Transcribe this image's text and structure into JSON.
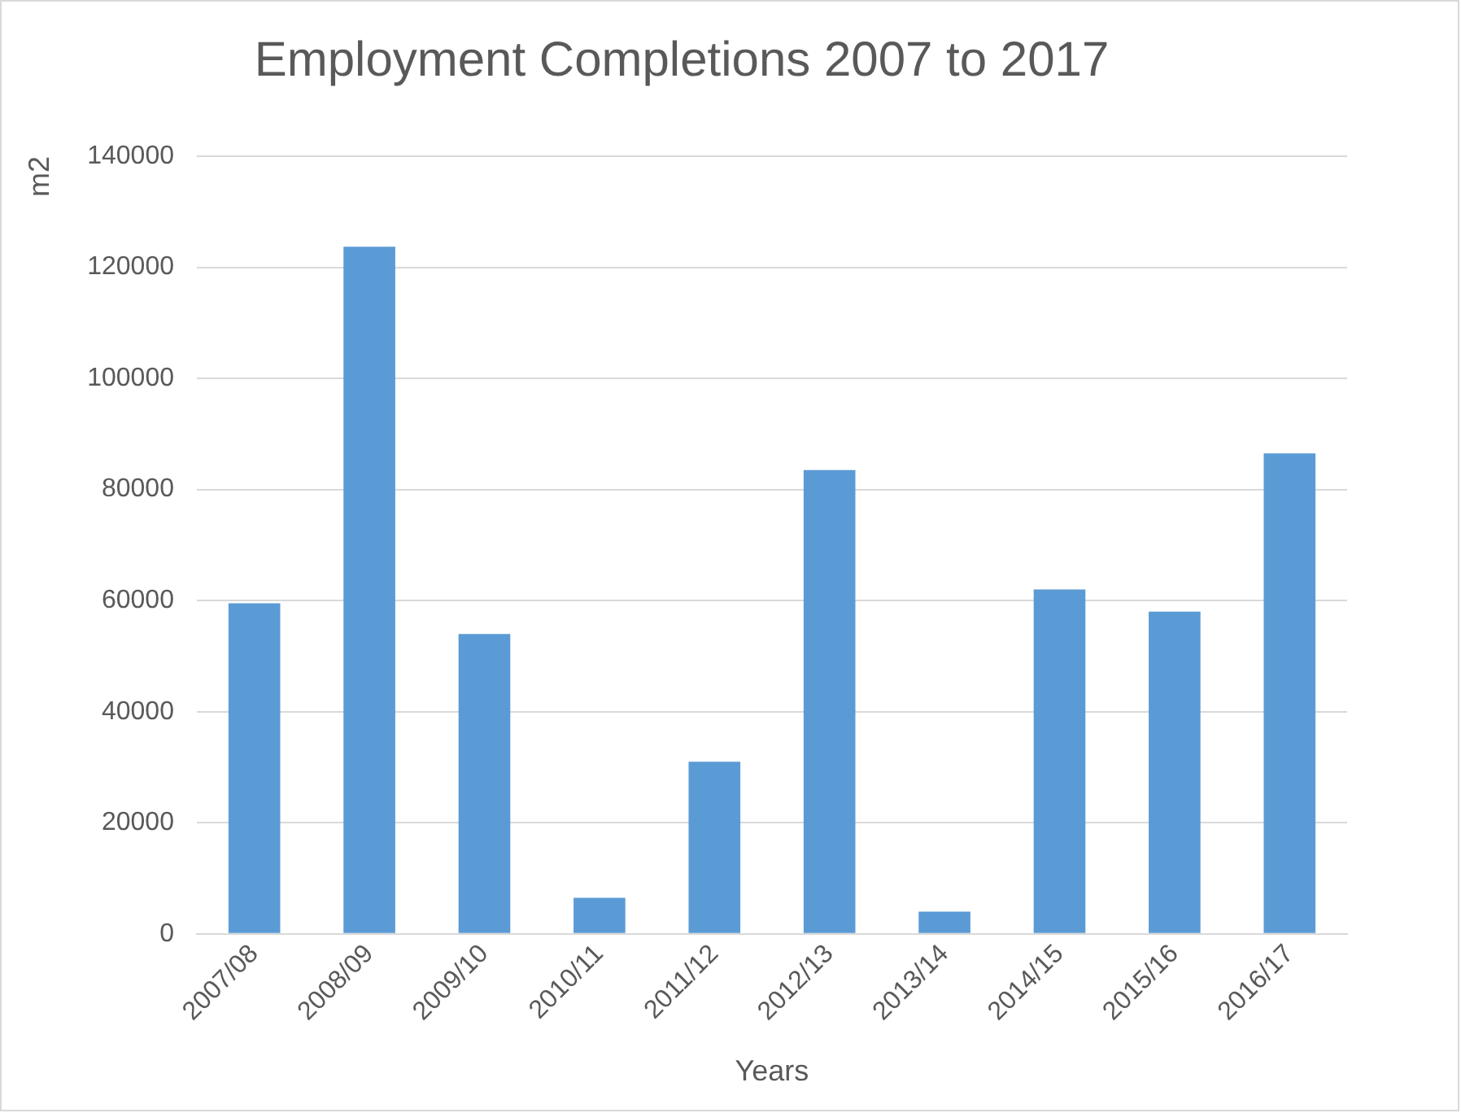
{
  "chart_data": {
    "type": "bar",
    "title": "Employment Completions 2007 to 2017",
    "xlabel": "Years",
    "ylabel": "m2",
    "categories": [
      "2007/08",
      "2008/09",
      "2009/10",
      "2010/11",
      "2011/12",
      "2012/13",
      "2013/14",
      "2014/15",
      "2015/16",
      "2016/17"
    ],
    "values": [
      59500,
      123700,
      54000,
      6500,
      31000,
      83500,
      4000,
      62000,
      58000,
      86500
    ],
    "color": "#5b9bd5",
    "ylim": [
      0,
      140000
    ],
    "yticks": [
      0,
      20000,
      40000,
      60000,
      80000,
      100000,
      120000,
      140000
    ],
    "grid": "y",
    "legend": false
  }
}
